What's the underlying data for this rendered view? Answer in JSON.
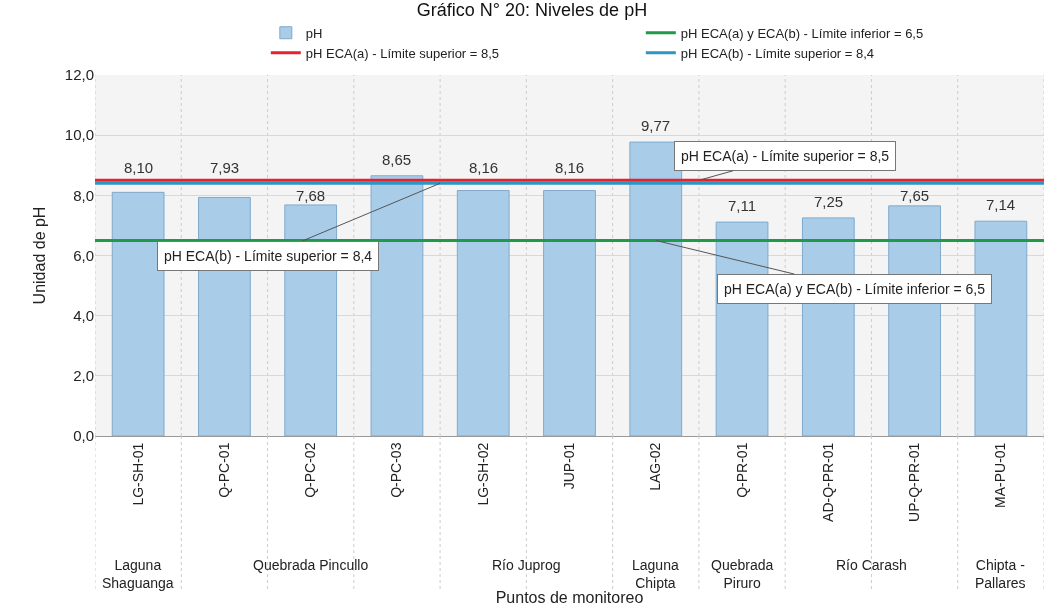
{
  "chart_data": {
    "type": "bar",
    "title": "Gráfico N° 20: Niveles de pH",
    "xlabel": "Puntos de monitoreo",
    "ylabel": "Unidad de pH",
    "categories": [
      "LG-SH-01",
      "Q-PC-01",
      "Q-PC-02",
      "Q-PC-03",
      "LG-SH-02",
      "JUP-01",
      "LAG-02",
      "Q-PR-01",
      "AD-Q-PR-01",
      "UP-Q-PR-01",
      "MA-PU-01"
    ],
    "series": [
      {
        "name": "pH",
        "color": "#a9cde9",
        "values": [
          8.1,
          7.93,
          7.68,
          8.65,
          8.16,
          8.16,
          9.77,
          7.11,
          7.25,
          7.65,
          7.14
        ],
        "value_labels": [
          "8,10",
          "7,93",
          "7,68",
          "8,65",
          "8,16",
          "8,16",
          "9,77",
          "7,11",
          "7,25",
          "7,65",
          "7,14"
        ]
      }
    ],
    "ref_lines": [
      {
        "axis": "y",
        "value": 6.5,
        "label": "pH ECA(a) y ECA(b) - Límite inferior = 6,5",
        "color": "#1e9a4a"
      },
      {
        "axis": "y",
        "value": 8.5,
        "label": "pH ECA(a) - Límite superior = 8,5",
        "color": "#e5232d"
      },
      {
        "axis": "y",
        "value": 8.4,
        "label": "pH ECA(b) - Límite superior = 8,4",
        "color": "#2e96c2"
      }
    ],
    "annotations": [
      "Laguna\nShaguanga",
      "Quebrada Pincullo",
      "Río Juprog",
      "Laguna\nChipta",
      "Quebrada\nPiruro",
      "Río Carash",
      "Chipta -\nPallares"
    ],
    "ylim": [
      0,
      12
    ],
    "yticks": [
      {
        "value": 0,
        "label": "0,0"
      },
      {
        "value": 2,
        "label": "2,0"
      },
      {
        "value": 4,
        "label": "4,0"
      },
      {
        "value": 6,
        "label": "6,0"
      },
      {
        "value": 8,
        "label": "8,0"
      },
      {
        "value": 10,
        "label": "10,0"
      },
      {
        "value": 12,
        "label": "12,0"
      }
    ],
    "grid": "y",
    "legend": "top"
  }
}
